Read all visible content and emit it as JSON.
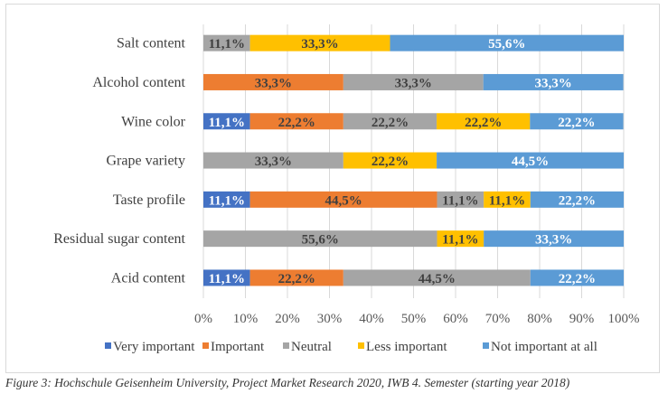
{
  "chart_data": {
    "type": "bar",
    "orientation": "horizontal",
    "stacked": "100%",
    "categories": [
      "Salt content",
      "Alcohol content",
      "Wine color",
      "Grape variety",
      "Taste profile",
      "Residual sugar content",
      "Acid content"
    ],
    "series": [
      {
        "name": "Very important",
        "color": "#4472C4",
        "labelColor": "#ffffff",
        "values": [
          null,
          null,
          11.1,
          null,
          11.1,
          null,
          11.1
        ]
      },
      {
        "name": "Important",
        "color": "#ED7D31",
        "labelColor": "#404040",
        "values": [
          null,
          33.3,
          22.2,
          null,
          44.5,
          null,
          22.2
        ]
      },
      {
        "name": "Neutral",
        "color": "#A5A5A5",
        "labelColor": "#404040",
        "values": [
          11.1,
          33.3,
          22.2,
          33.3,
          11.1,
          55.6,
          44.5
        ]
      },
      {
        "name": "Less important",
        "color": "#FFC000",
        "labelColor": "#404040",
        "values": [
          33.3,
          null,
          22.2,
          22.2,
          11.1,
          11.1,
          null
        ]
      },
      {
        "name": "Not important at all",
        "color": "#5B9BD5",
        "labelColor": "#ffffff",
        "values": [
          55.6,
          33.3,
          22.2,
          44.5,
          22.2,
          33.3,
          22.2
        ]
      }
    ],
    "data_labels": [
      [
        "",
        "",
        "",
        "",
        "",
        "",
        ""
      ]
    ],
    "xticks": [
      "0%",
      "10%",
      "20%",
      "30%",
      "40%",
      "50%",
      "60%",
      "70%",
      "80%",
      "90%",
      "100%"
    ],
    "xlim": [
      0,
      100
    ],
    "grid": true,
    "legend": "bottom"
  },
  "caption": "Figure 3: Hochschule Geisenheim University, Project Market Research 2020, IWB 4. Semester (starting year 2018)"
}
